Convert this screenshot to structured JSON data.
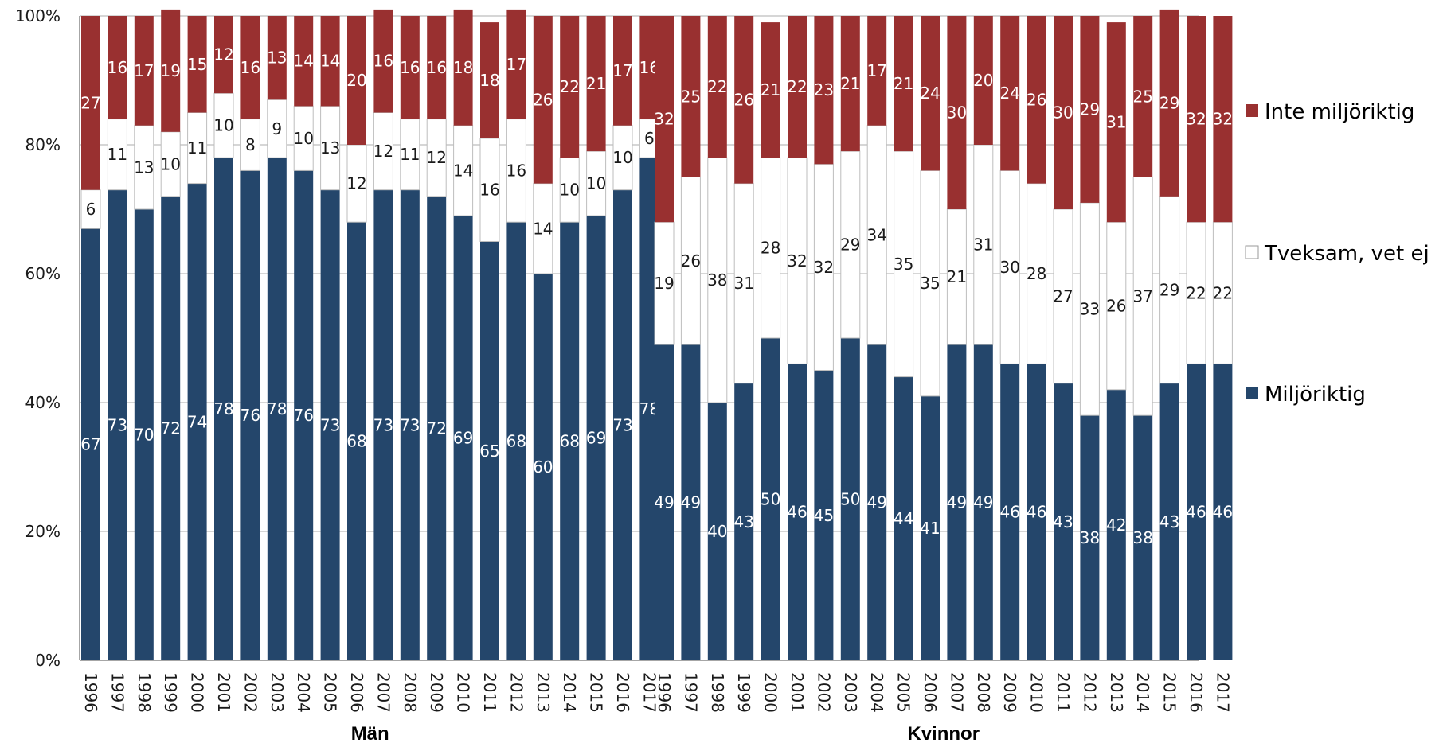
{
  "chart_data": {
    "type": "bar",
    "stacked": true,
    "percent": true,
    "ylim": [
      0,
      100
    ],
    "yticks": [
      "0%",
      "20%",
      "40%",
      "60%",
      "80%",
      "100%"
    ],
    "grid": true,
    "legend_position": "right",
    "colors": {
      "Miljöriktig": "#24466b",
      "Tveksam, vet ej": "#ffffff",
      "Inte miljöriktig": "#993030"
    },
    "series_order_bottom_to_top": [
      "Miljöriktig",
      "Tveksam, vet ej",
      "Inte miljöriktig"
    ],
    "legend": [
      "Inte miljöriktig",
      "Tveksam, vet ej",
      "Miljöriktig"
    ],
    "groups": [
      {
        "name": "Män",
        "categories": [
          "1996",
          "1997",
          "1998",
          "1999",
          "2000",
          "2001",
          "2002",
          "2003",
          "2004",
          "2005",
          "2006",
          "2007",
          "2008",
          "2009",
          "2010",
          "2011",
          "2012",
          "2013",
          "2014",
          "2015",
          "2016",
          "2017"
        ],
        "series": [
          {
            "name": "Miljöriktig",
            "values": [
              67,
              73,
              70,
              72,
              74,
              78,
              76,
              78,
              76,
              73,
              68,
              73,
              73,
              72,
              69,
              65,
              68,
              60,
              68,
              69,
              73,
              78
            ]
          },
          {
            "name": "Tveksam, vet ej",
            "values": [
              6,
              11,
              13,
              10,
              11,
              10,
              8,
              9,
              10,
              13,
              12,
              12,
              11,
              12,
              14,
              16,
              16,
              14,
              10,
              10,
              10,
              6
            ]
          },
          {
            "name": "Inte miljöriktig",
            "values": [
              27,
              16,
              17,
              19,
              15,
              12,
              16,
              13,
              14,
              14,
              20,
              16,
              16,
              16,
              18,
              18,
              17,
              26,
              22,
              21,
              17,
              16
            ]
          }
        ]
      },
      {
        "name": "Kvinnor",
        "categories": [
          "1996",
          "1997",
          "1998",
          "1999",
          "2000",
          "2001",
          "2002",
          "2003",
          "2004",
          "2005",
          "2006",
          "2007",
          "2008",
          "2009",
          "2010",
          "2011",
          "2012",
          "2013",
          "2014",
          "2015",
          "2016",
          "2017"
        ],
        "series": [
          {
            "name": "Miljöriktig",
            "values": [
              49,
              49,
              40,
              43,
              50,
              46,
              45,
              50,
              49,
              44,
              41,
              49,
              49,
              46,
              46,
              43,
              38,
              42,
              38,
              43,
              46,
              46
            ]
          },
          {
            "name": "Tveksam, vet ej",
            "values": [
              19,
              26,
              38,
              31,
              28,
              32,
              32,
              29,
              34,
              35,
              35,
              21,
              31,
              30,
              28,
              27,
              33,
              26,
              37,
              29,
              22,
              22
            ]
          },
          {
            "name": "Inte miljöriktig",
            "values": [
              32,
              25,
              22,
              26,
              21,
              22,
              23,
              21,
              17,
              21,
              24,
              30,
              20,
              24,
              26,
              30,
              29,
              31,
              25,
              29,
              32,
              32
            ]
          }
        ]
      }
    ]
  }
}
